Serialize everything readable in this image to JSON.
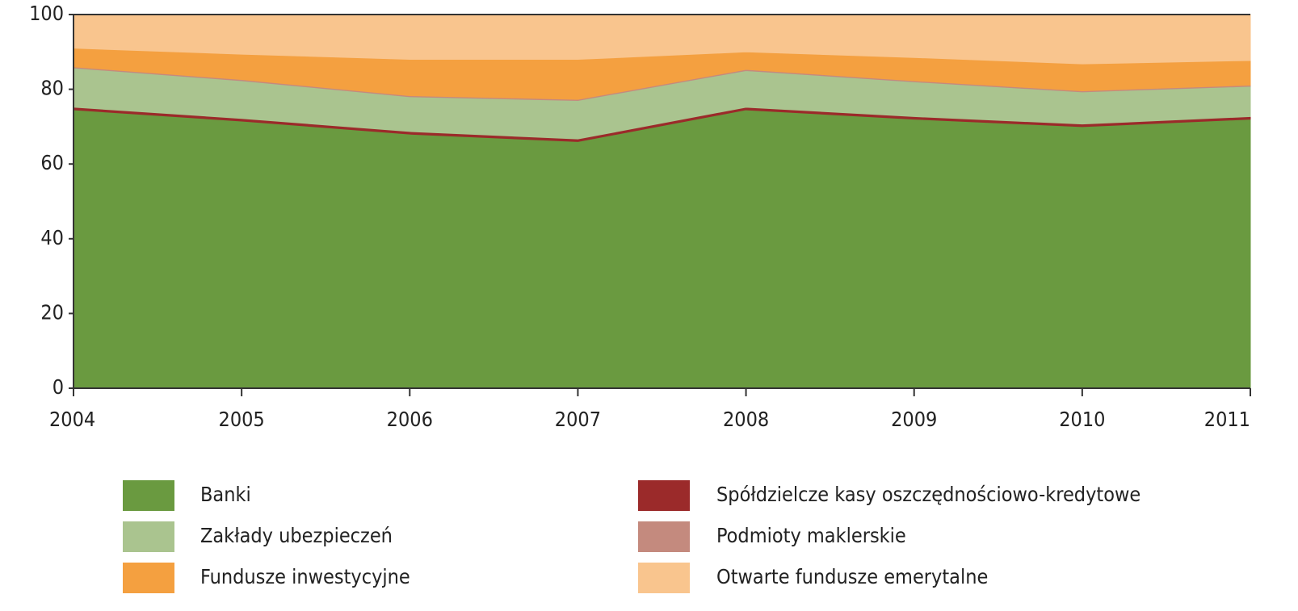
{
  "chart_data": {
    "type": "stacked-area",
    "categories": [
      "2004",
      "2005",
      "2006",
      "2007",
      "2008",
      "2009",
      "2010",
      "2011"
    ],
    "series": [
      {
        "name": "Banki",
        "color": "#6a9a40",
        "values": [
          74.5,
          71.5,
          68,
          66,
          74.5,
          72,
          70,
          72
        ]
      },
      {
        "name": "Spółdzielcze kasy oszczędnościowo-kredytowe",
        "color": "#9b2a2a",
        "values": [
          0.7,
          0.7,
          0.7,
          0.7,
          0.7,
          0.7,
          0.7,
          0.7
        ]
      },
      {
        "name": "Zakłady ubezpieczeń",
        "color": "#aac48f",
        "values": [
          10.5,
          10.1,
          9.3,
          10.3,
          9.8,
          9.3,
          8.6,
          8.1
        ]
      },
      {
        "name": "Podmioty maklerskie",
        "color": "#c48a7e",
        "values": [
          0.3,
          0.3,
          0.3,
          0.3,
          0.3,
          0.3,
          0.3,
          0.3
        ]
      },
      {
        "name": "Fundusze inwestycyjne",
        "color": "#f4a040",
        "values": [
          5,
          6.8,
          9.7,
          10.7,
          4.7,
          6.2,
          7.2,
          6.6
        ]
      },
      {
        "name": "Otwarte fundusze emerytalne",
        "color": "#f9c58e",
        "values": [
          9,
          10.6,
          12,
          12,
          10,
          11.5,
          13.2,
          12.3
        ]
      }
    ],
    "ylim": [
      0,
      100
    ],
    "yticks": [
      0,
      20,
      40,
      60,
      80,
      100
    ],
    "grid": false
  }
}
